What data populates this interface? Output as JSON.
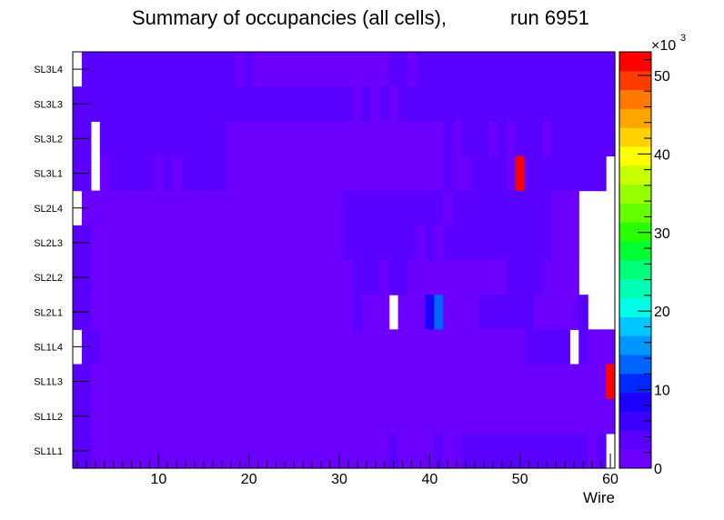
{
  "chart_data": {
    "type": "heatmap",
    "title": "Summary of occupancies (all cells),",
    "run_label": "run 6951",
    "xlabel": "Wire",
    "x_range": [
      0.5,
      60.5
    ],
    "x_ticks": [
      "10",
      "20",
      "30",
      "40",
      "50",
      "60"
    ],
    "x_tick_values": [
      10,
      20,
      30,
      40,
      50,
      60
    ],
    "rows": [
      "SL3L4",
      "SL3L3",
      "SL3L2",
      "SL3L1",
      "SL2L4",
      "SL2L3",
      "SL2L2",
      "SL2L1",
      "SL1L4",
      "SL1L3",
      "SL1L2",
      "SL1L1"
    ],
    "z_scale_label": "×10",
    "z_scale_exponent": "3",
    "z_range": [
      0,
      53000
    ],
    "z_ticks": [
      "0",
      "10",
      "20",
      "30",
      "40",
      "50"
    ],
    "z_tick_values": [
      0,
      10,
      20,
      30,
      40,
      50
    ],
    "palette": [
      "#6c00ff",
      "#5a00ff",
      "#3c00ff",
      "#1e00ff",
      "#0028ff",
      "#0064ff",
      "#0096ff",
      "#00c8ff",
      "#00ffe6",
      "#00ffb4",
      "#00ff78",
      "#00ff32",
      "#28ff00",
      "#64ff00",
      "#96ff00",
      "#c8ff00",
      "#ffff00",
      "#ffd200",
      "#ffa500",
      "#ff7800",
      "#ff3c00",
      "#ff0000"
    ],
    "row_segments": [
      [
        [
          1,
          1,
          null
        ],
        [
          2,
          18,
          3200
        ],
        [
          19,
          19,
          1800
        ],
        [
          20,
          20,
          3200
        ],
        [
          21,
          21,
          1800
        ],
        [
          22,
          35,
          2400
        ],
        [
          36,
          37,
          3200
        ],
        [
          38,
          38,
          2400
        ],
        [
          39,
          39,
          3200
        ],
        [
          40,
          60,
          3200
        ]
      ],
      [
        [
          1,
          31,
          3200
        ],
        [
          32,
          32,
          2400
        ],
        [
          33,
          33,
          3200
        ],
        [
          34,
          34,
          2400
        ],
        [
          35,
          35,
          3200
        ],
        [
          36,
          36,
          2400
        ],
        [
          37,
          39,
          3200
        ],
        [
          40,
          60,
          3200
        ]
      ],
      [
        [
          1,
          2,
          3200
        ],
        [
          3,
          3,
          null
        ],
        [
          4,
          17,
          3200
        ],
        [
          18,
          41,
          2400
        ],
        [
          42,
          42,
          3200
        ],
        [
          43,
          43,
          2400
        ],
        [
          44,
          46,
          3200
        ],
        [
          47,
          47,
          2400
        ],
        [
          48,
          48,
          3200
        ],
        [
          49,
          49,
          2400
        ],
        [
          50,
          52,
          3200
        ],
        [
          53,
          53,
          2400
        ],
        [
          54,
          60,
          3200
        ]
      ],
      [
        [
          1,
          2,
          3200
        ],
        [
          3,
          3,
          null
        ],
        [
          4,
          4,
          2400
        ],
        [
          5,
          6,
          3200
        ],
        [
          7,
          9,
          3200
        ],
        [
          10,
          10,
          2400
        ],
        [
          11,
          11,
          3200
        ],
        [
          12,
          12,
          2400
        ],
        [
          13,
          17,
          3200
        ],
        [
          18,
          41,
          2400
        ],
        [
          42,
          42,
          3200
        ],
        [
          43,
          44,
          2400
        ],
        [
          45,
          48,
          3200
        ],
        [
          49,
          49,
          2400
        ],
        [
          50,
          50,
          53000
        ],
        [
          51,
          59,
          3200
        ],
        [
          60,
          60,
          null
        ]
      ],
      [
        [
          1,
          1,
          null
        ],
        [
          2,
          30,
          2400
        ],
        [
          31,
          41,
          3200
        ],
        [
          42,
          42,
          2400
        ],
        [
          43,
          53,
          3200
        ],
        [
          54,
          56,
          2400
        ],
        [
          57,
          60,
          null
        ]
      ],
      [
        [
          1,
          2,
          3200
        ],
        [
          3,
          30,
          2400
        ],
        [
          31,
          38,
          3200
        ],
        [
          39,
          39,
          2400
        ],
        [
          40,
          40,
          3200
        ],
        [
          41,
          41,
          2400
        ],
        [
          42,
          53,
          3200
        ],
        [
          54,
          56,
          2400
        ],
        [
          57,
          60,
          null
        ]
      ],
      [
        [
          1,
          2,
          3200
        ],
        [
          3,
          31,
          2400
        ],
        [
          32,
          34,
          3200
        ],
        [
          35,
          35,
          2400
        ],
        [
          36,
          37,
          3200
        ],
        [
          38,
          48,
          2400
        ],
        [
          49,
          52,
          3200
        ],
        [
          53,
          56,
          2400
        ],
        [
          57,
          60,
          null
        ]
      ],
      [
        [
          1,
          2,
          3200
        ],
        [
          3,
          31,
          2400
        ],
        [
          32,
          32,
          3200
        ],
        [
          33,
          35,
          2400
        ],
        [
          36,
          36,
          null
        ],
        [
          37,
          39,
          2400
        ],
        [
          40,
          40,
          9000
        ],
        [
          41,
          41,
          13500
        ],
        [
          42,
          45,
          2400
        ],
        [
          46,
          51,
          3200
        ],
        [
          52,
          56,
          2400
        ],
        [
          57,
          57,
          3200
        ],
        [
          58,
          60,
          null
        ]
      ],
      [
        [
          1,
          1,
          null
        ],
        [
          2,
          3,
          3200
        ],
        [
          4,
          50,
          2400
        ],
        [
          51,
          55,
          3200
        ],
        [
          56,
          56,
          null
        ],
        [
          57,
          57,
          3200
        ],
        [
          58,
          60,
          2400
        ]
      ],
      [
        [
          1,
          2,
          3200
        ],
        [
          3,
          59,
          2400
        ],
        [
          60,
          60,
          53000
        ]
      ],
      [
        [
          1,
          2,
          3200
        ],
        [
          3,
          59,
          2400
        ],
        [
          60,
          60,
          1800
        ]
      ],
      [
        [
          1,
          2,
          3200
        ],
        [
          3,
          35,
          2400
        ],
        [
          36,
          36,
          3200
        ],
        [
          37,
          40,
          2400
        ],
        [
          41,
          41,
          3200
        ],
        [
          42,
          43,
          2400
        ],
        [
          44,
          57,
          3200
        ],
        [
          58,
          58,
          2400
        ],
        [
          59,
          59,
          3200
        ],
        [
          60,
          60,
          null
        ]
      ]
    ]
  }
}
